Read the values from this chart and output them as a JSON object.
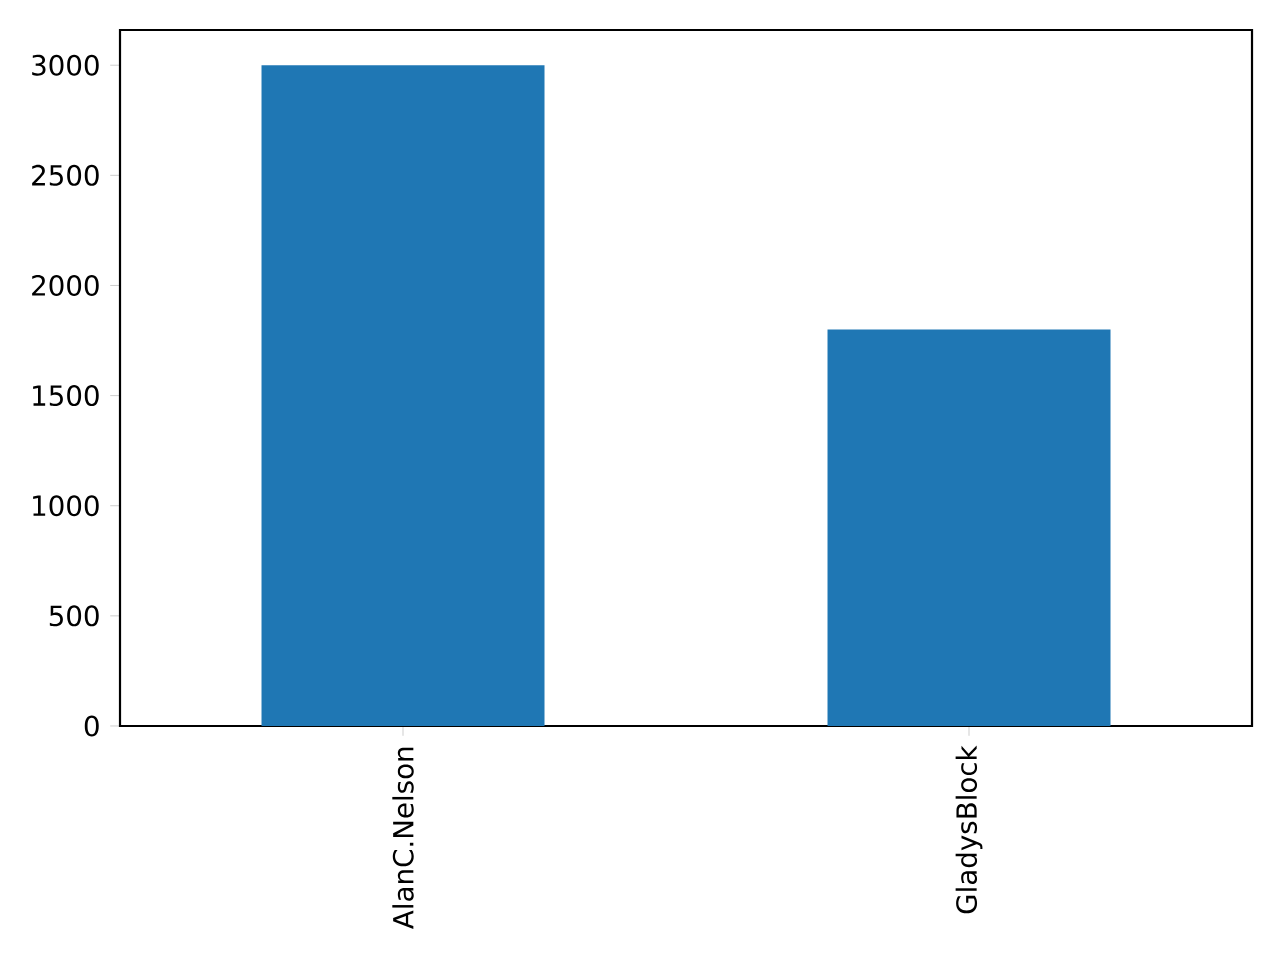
{
  "chart_data": {
    "type": "bar",
    "categories": [
      "AlanC.Nelson",
      "GladysBlock"
    ],
    "values": [
      3000,
      1800
    ],
    "color": "#1f77b4",
    "ylim": [
      0,
      3160
    ],
    "yticks": [
      0,
      500,
      1000,
      1500,
      2000,
      2500,
      3000
    ]
  }
}
